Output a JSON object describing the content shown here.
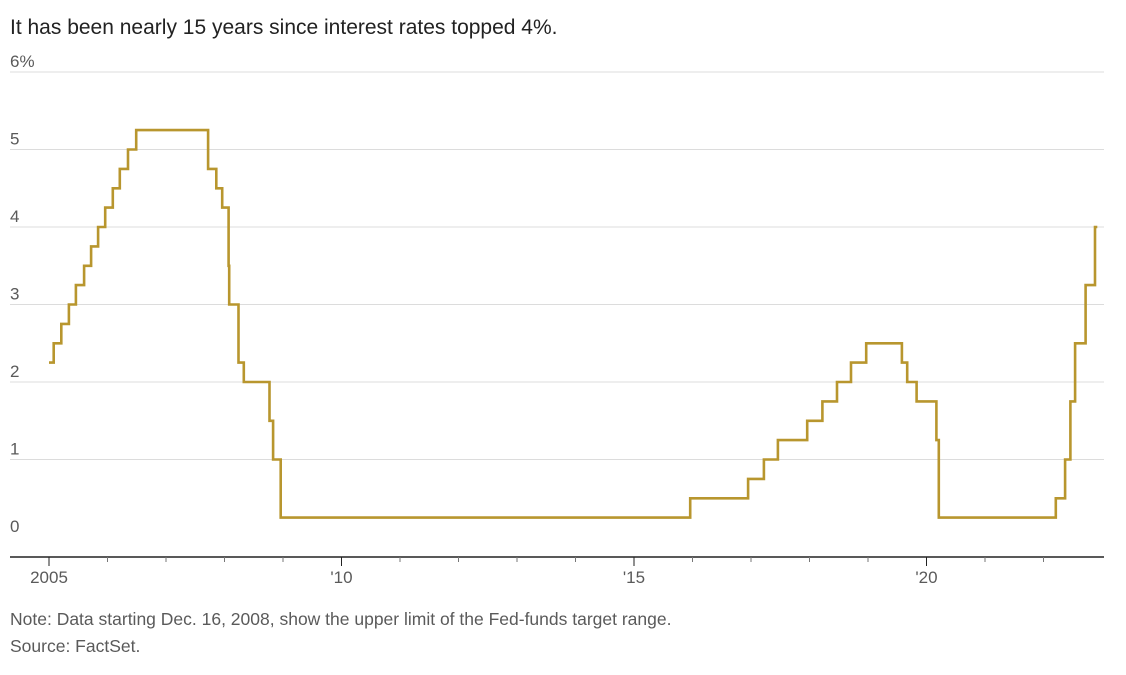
{
  "title": "It has been nearly 15 years since interest rates topped 4%.",
  "note": "Note: Data starting Dec. 16, 2008, show the upper limit of the Fed-funds target range.",
  "source": "Source: FactSet.",
  "colors": {
    "line": "#B8962E",
    "grid": "#dcdcdc",
    "axis": "#222222",
    "text": "#5a5a5a"
  },
  "chart_data": {
    "type": "line",
    "step": true,
    "xlabel": "",
    "ylabel": "",
    "ylim": [
      0,
      6
    ],
    "xlim": [
      2005.0,
      2022.92
    ],
    "y_ticks": [
      {
        "value": 6,
        "label": "6%"
      },
      {
        "value": 5,
        "label": "5"
      },
      {
        "value": 4,
        "label": "4"
      },
      {
        "value": 3,
        "label": "3"
      },
      {
        "value": 2,
        "label": "2"
      },
      {
        "value": 1,
        "label": "1"
      },
      {
        "value": 0,
        "label": "0"
      }
    ],
    "x_ticks": [
      {
        "value": 2005,
        "label": "2005"
      },
      {
        "value": 2010,
        "label": "'10"
      },
      {
        "value": 2015,
        "label": "'15"
      },
      {
        "value": 2020,
        "label": "'20"
      }
    ],
    "x_minor_ticks": [
      2006,
      2007,
      2008,
      2009,
      2011,
      2012,
      2013,
      2014,
      2016,
      2017,
      2018,
      2019,
      2021,
      2022
    ],
    "grid": true,
    "series": [
      {
        "x": [
          2005.0,
          2005.08,
          2005.21,
          2005.34,
          2005.46,
          2005.6,
          2005.72,
          2005.84,
          2005.96,
          2006.09,
          2006.21,
          2006.35,
          2006.49,
          2007.72,
          2007.86,
          2007.96,
          2008.07,
          2008.08,
          2008.13,
          2008.24,
          2008.33,
          2008.77,
          2008.83,
          2008.96,
          2015.96,
          2016.95,
          2017.22,
          2017.46,
          2017.96,
          2018.22,
          2018.47,
          2018.71,
          2018.97,
          2019.58,
          2019.67,
          2019.83,
          2020.17,
          2020.21,
          2022.21,
          2022.37,
          2022.46,
          2022.54,
          2022.72,
          2022.88,
          2022.92
        ],
        "values": [
          2.25,
          2.5,
          2.75,
          3.0,
          3.25,
          3.5,
          3.75,
          4.0,
          4.25,
          4.5,
          4.75,
          5.0,
          5.25,
          4.75,
          4.5,
          4.25,
          3.5,
          3.0,
          3.0,
          2.25,
          2.0,
          1.5,
          1.0,
          0.25,
          0.5,
          0.75,
          1.0,
          1.25,
          1.5,
          1.75,
          2.0,
          2.25,
          2.5,
          2.25,
          2.0,
          1.75,
          1.25,
          0.25,
          0.5,
          1.0,
          1.75,
          2.5,
          3.25,
          4.0,
          4.0
        ]
      }
    ]
  }
}
